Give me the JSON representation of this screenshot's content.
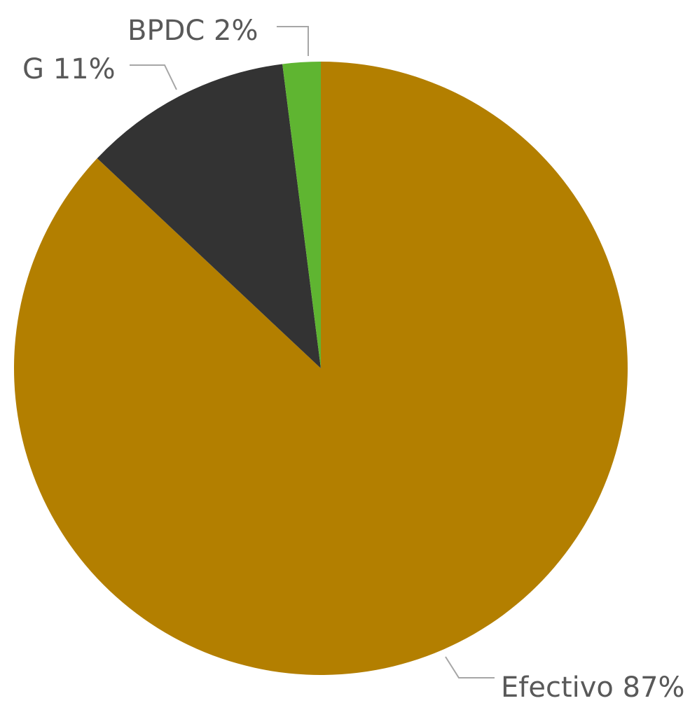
{
  "chart_data": {
    "type": "pie",
    "start_angle_deg": 0,
    "direction": "clockwise",
    "slices": [
      {
        "label": "Efectivo 87%",
        "category": "Efectivo",
        "value": 87,
        "color": "#b37f00"
      },
      {
        "label": "G 11%",
        "category": "G",
        "value": 11,
        "color": "#333333"
      },
      {
        "label": "BPDC 2%",
        "category": "BPDC",
        "value": 2,
        "color": "#5fb531"
      }
    ],
    "labels_position": "outside with leader lines",
    "legend": "none"
  }
}
